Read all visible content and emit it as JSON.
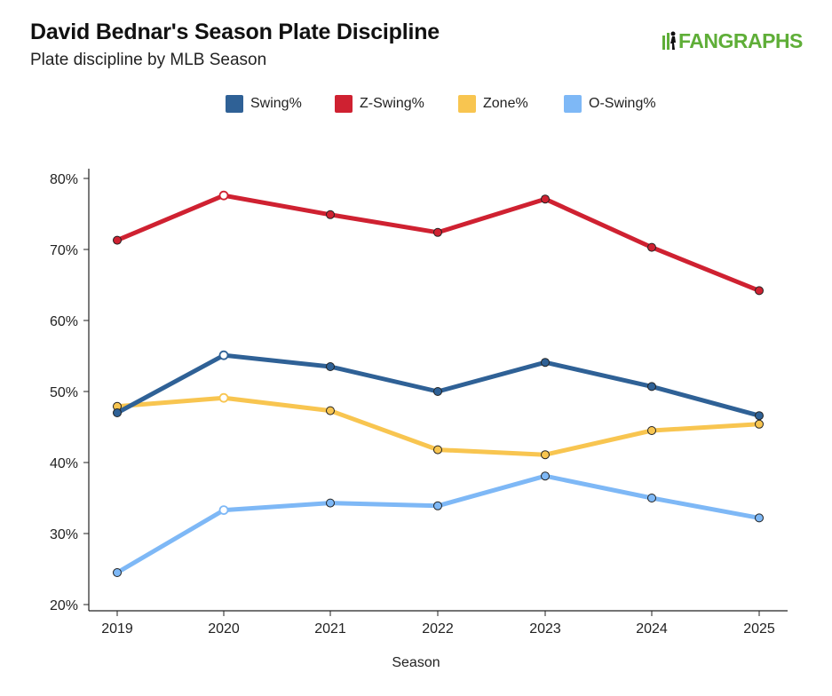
{
  "header": {
    "title": "David Bednar's Season Plate Discipline",
    "subtitle": "Plate discipline by MLB Season",
    "logo": "FANGRAPHS"
  },
  "chart_data": {
    "type": "line",
    "title": "David Bednar's Season Plate Discipline",
    "subtitle": "Plate discipline by MLB Season",
    "xlabel": "Season",
    "ylabel": "",
    "x": [
      2019,
      2020,
      2021,
      2022,
      2023,
      2024,
      2025
    ],
    "x_tick_labels": [
      "2019",
      "2020",
      "2021",
      "2022",
      "2023",
      "2024",
      "2025"
    ],
    "ylim": [
      20,
      80
    ],
    "y_ticks": [
      20,
      30,
      40,
      50,
      60,
      70,
      80
    ],
    "y_tick_labels": [
      "20%",
      "30%",
      "40%",
      "50%",
      "60%",
      "70%",
      "80%"
    ],
    "grid": false,
    "legend_position": "top-center",
    "series": [
      {
        "name": "Swing%",
        "color": "#2f6196",
        "values": [
          47.0,
          55.1,
          53.5,
          50.0,
          54.1,
          50.7,
          46.6
        ]
      },
      {
        "name": "Z-Swing%",
        "color": "#cf2131",
        "values": [
          71.3,
          77.6,
          74.9,
          72.4,
          77.1,
          70.3,
          64.2
        ]
      },
      {
        "name": "Zone%",
        "color": "#f8c550",
        "values": [
          47.9,
          49.1,
          47.3,
          41.8,
          41.1,
          44.5,
          45.4
        ]
      },
      {
        "name": "O-Swing%",
        "color": "#7eb8f6",
        "values": [
          24.5,
          33.3,
          34.3,
          33.9,
          38.1,
          35.0,
          32.2
        ]
      }
    ],
    "hollow_point_x": 2020
  }
}
